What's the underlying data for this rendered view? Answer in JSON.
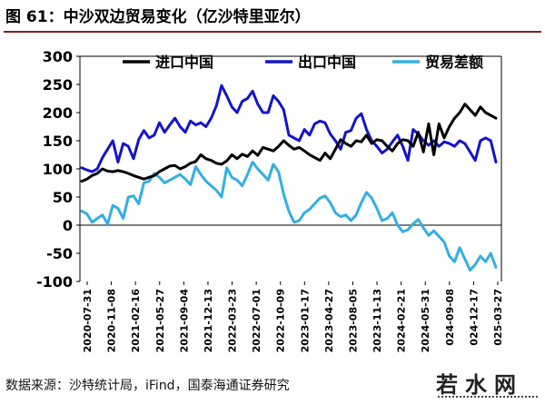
{
  "title": "图 61：中沙双边贸易变化（亿沙特里亚尔）",
  "source": "数据来源：沙特统计局，iFind，国泰海通证券研究",
  "watermark": "若水网",
  "colors": {
    "imports": "#000000",
    "exports": "#1414c8",
    "balance": "#33aee6",
    "title_rule": "#7f1f1f"
  },
  "chart_data": {
    "type": "line",
    "title": "图 61：中沙双边贸易变化（亿沙特里亚尔）",
    "xlabel": "",
    "ylabel": "",
    "ylim": [
      -100,
      300
    ],
    "yticks": [
      -100,
      -50,
      0,
      50,
      100,
      150,
      200,
      250,
      300
    ],
    "x_tick_labels": [
      "2020-07-31",
      "2020-11-08",
      "2021-02-16",
      "2021-05-27",
      "2021-09-04",
      "2021-12-13",
      "2022-03-23",
      "2022-07-01",
      "2022-10-09",
      "2023-01-17",
      "2023-04-27",
      "2023-08-05",
      "2023-11-13",
      "2024-02-21",
      "2024-05-31",
      "024-09-08",
      "024-12-17",
      "025-03-27"
    ],
    "grid": false,
    "legend_position": "top",
    "x_start": "2020-07",
    "x_end": "2025-05",
    "series": [
      {
        "name": "进口中国",
        "color": "#000000",
        "values": [
          78,
          82,
          88,
          92,
          100,
          96,
          95,
          97,
          95,
          92,
          88,
          85,
          82,
          85,
          88,
          95,
          100,
          105,
          106,
          100,
          104,
          110,
          113,
          125,
          118,
          115,
          110,
          108,
          114,
          125,
          118,
          126,
          122,
          132,
          124,
          138,
          135,
          132,
          140,
          150,
          142,
          135,
          138,
          132,
          125,
          120,
          115,
          128,
          118,
          135,
          152,
          145,
          140,
          150,
          148,
          160,
          145,
          152,
          150,
          140,
          132,
          145,
          152,
          150,
          140,
          165,
          130,
          180,
          125,
          180,
          155,
          175,
          190,
          200,
          215,
          205,
          195,
          210,
          200,
          195,
          190
        ]
      },
      {
        "name": "出口中国",
        "color": "#1414c8",
        "values": [
          102,
          98,
          95,
          100,
          120,
          135,
          150,
          112,
          145,
          140,
          118,
          152,
          168,
          155,
          160,
          182,
          165,
          178,
          190,
          175,
          165,
          185,
          178,
          182,
          175,
          190,
          212,
          248,
          230,
          210,
          200,
          220,
          225,
          238,
          215,
          200,
          200,
          230,
          220,
          205,
          160,
          155,
          150,
          170,
          160,
          180,
          185,
          182,
          162,
          150,
          135,
          165,
          168,
          190,
          198,
          170,
          150,
          140,
          128,
          135,
          148,
          160,
          140,
          115,
          170,
          162,
          150,
          142,
          150,
          140,
          148,
          145,
          140,
          150,
          145,
          130,
          115,
          150,
          155,
          150,
          112
        ]
      },
      {
        "name": "贸易差额",
        "color": "#33aee6",
        "values": [
          25,
          20,
          5,
          12,
          18,
          2,
          35,
          30,
          12,
          50,
          52,
          38,
          75,
          78,
          92,
          85,
          75,
          80,
          85,
          90,
          82,
          72,
          104,
          90,
          78,
          70,
          62,
          50,
          102,
          85,
          80,
          70,
          90,
          112,
          100,
          90,
          80,
          108,
          95,
          55,
          25,
          5,
          8,
          22,
          28,
          38,
          48,
          52,
          40,
          22,
          15,
          18,
          8,
          18,
          40,
          58,
          48,
          30,
          8,
          12,
          22,
          0,
          -12,
          -8,
          2,
          10,
          -5,
          -18,
          -10,
          -20,
          -30,
          -55,
          -65,
          -40,
          -60,
          -80,
          -70,
          -55,
          -65,
          -50,
          -75
        ]
      }
    ]
  }
}
